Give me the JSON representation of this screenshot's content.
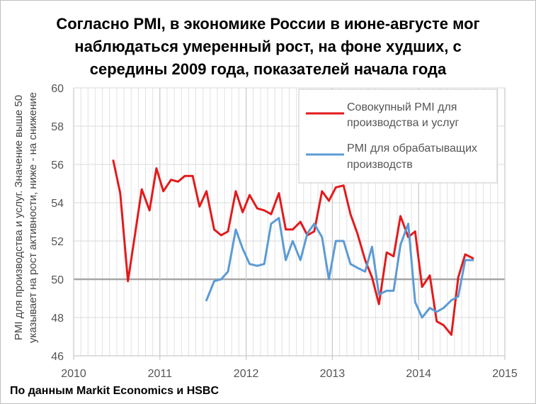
{
  "chart_data": {
    "type": "line",
    "title_lines": [
      "Согласно PMI, в экономике России в июне-августе мог",
      "наблюдаться умеренный рост, на фоне худших, с",
      "середины 2009 года, показателей начала года"
    ],
    "ylabel_lines": [
      "PMI для производства и услуг. Значение выше 50",
      "указывает на рост активности, ниже - на снижение"
    ],
    "xlim": [
      2010,
      2015
    ],
    "ylim": [
      46,
      60
    ],
    "x_ticks": [
      "2010",
      "2011",
      "2012",
      "2013",
      "2014",
      "2015"
    ],
    "y_ticks": [
      "46",
      "48",
      "50",
      "52",
      "54",
      "56",
      "58",
      "60"
    ],
    "grid": true,
    "reference_line": 50,
    "legend_position": "top-right",
    "series": [
      {
        "name": "Совокупный PMI для производства и услуг",
        "legend_lines": [
          "Совокупный PMI для",
          "производства и услуг"
        ],
        "color": "#e31a1c",
        "points": [
          [
            2010.46,
            56.2
          ],
          [
            2010.54,
            54.5
          ],
          [
            2010.63,
            49.9
          ],
          [
            2010.71,
            52.3
          ],
          [
            2010.79,
            54.7
          ],
          [
            2010.88,
            53.6
          ],
          [
            2010.96,
            55.8
          ],
          [
            2011.04,
            54.6
          ],
          [
            2011.13,
            55.2
          ],
          [
            2011.21,
            55.1
          ],
          [
            2011.29,
            55.4
          ],
          [
            2011.38,
            55.4
          ],
          [
            2011.46,
            53.8
          ],
          [
            2011.54,
            54.6
          ],
          [
            2011.63,
            52.6
          ],
          [
            2011.71,
            52.3
          ],
          [
            2011.79,
            52.5
          ],
          [
            2011.88,
            54.6
          ],
          [
            2011.96,
            53.5
          ],
          [
            2012.04,
            54.4
          ],
          [
            2012.13,
            53.7
          ],
          [
            2012.21,
            53.6
          ],
          [
            2012.29,
            53.4
          ],
          [
            2012.38,
            54.5
          ],
          [
            2012.46,
            52.6
          ],
          [
            2012.54,
            52.6
          ],
          [
            2012.63,
            53.0
          ],
          [
            2012.71,
            52.3
          ],
          [
            2012.79,
            52.5
          ],
          [
            2012.88,
            54.6
          ],
          [
            2012.96,
            54.1
          ],
          [
            2013.04,
            54.8
          ],
          [
            2013.13,
            54.9
          ],
          [
            2013.21,
            53.4
          ],
          [
            2013.29,
            52.4
          ],
          [
            2013.38,
            51.0
          ],
          [
            2013.46,
            50.1
          ],
          [
            2013.54,
            48.7
          ],
          [
            2013.63,
            51.4
          ],
          [
            2013.71,
            51.2
          ],
          [
            2013.79,
            53.3
          ],
          [
            2013.88,
            52.2
          ],
          [
            2013.96,
            52.5
          ],
          [
            2014.04,
            49.6
          ],
          [
            2014.13,
            50.2
          ],
          [
            2014.21,
            47.8
          ],
          [
            2014.29,
            47.6
          ],
          [
            2014.38,
            47.1
          ],
          [
            2014.46,
            50.1
          ],
          [
            2014.54,
            51.3
          ],
          [
            2014.63,
            51.1
          ]
        ]
      },
      {
        "name": "PMI для обрабатыващих производств",
        "legend_lines": [
          "PMI для обрабатыващих",
          "производств"
        ],
        "color": "#5b9bd5",
        "points": [
          [
            2011.54,
            48.9
          ],
          [
            2011.63,
            49.9
          ],
          [
            2011.71,
            50.0
          ],
          [
            2011.79,
            50.4
          ],
          [
            2011.88,
            52.6
          ],
          [
            2011.96,
            51.6
          ],
          [
            2012.04,
            50.8
          ],
          [
            2012.13,
            50.7
          ],
          [
            2012.21,
            50.8
          ],
          [
            2012.29,
            52.9
          ],
          [
            2012.38,
            53.2
          ],
          [
            2012.46,
            51.0
          ],
          [
            2012.54,
            52.0
          ],
          [
            2012.63,
            51.0
          ],
          [
            2012.71,
            52.4
          ],
          [
            2012.79,
            52.9
          ],
          [
            2012.88,
            52.2
          ],
          [
            2012.96,
            50.0
          ],
          [
            2013.04,
            52.0
          ],
          [
            2013.13,
            52.0
          ],
          [
            2013.21,
            50.8
          ],
          [
            2013.29,
            50.6
          ],
          [
            2013.38,
            50.4
          ],
          [
            2013.46,
            51.7
          ],
          [
            2013.54,
            49.2
          ],
          [
            2013.63,
            49.4
          ],
          [
            2013.71,
            49.4
          ],
          [
            2013.79,
            51.8
          ],
          [
            2013.88,
            52.9
          ],
          [
            2013.96,
            48.8
          ],
          [
            2014.04,
            48.0
          ],
          [
            2014.13,
            48.5
          ],
          [
            2014.21,
            48.3
          ],
          [
            2014.29,
            48.5
          ],
          [
            2014.38,
            48.9
          ],
          [
            2014.46,
            49.1
          ],
          [
            2014.54,
            51.0
          ],
          [
            2014.63,
            51.0
          ]
        ]
      }
    ]
  },
  "source": "По данным Markit Economics и HSBC"
}
